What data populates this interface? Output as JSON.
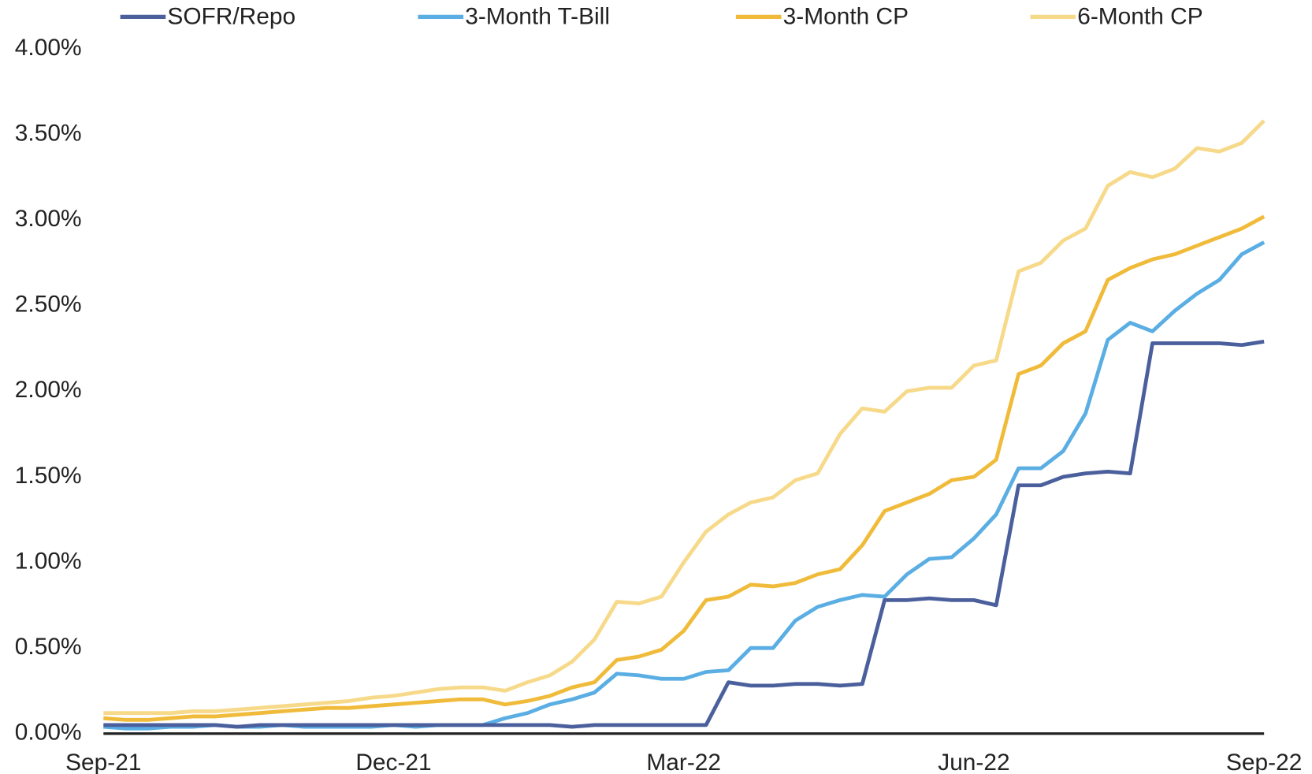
{
  "chart_data": {
    "type": "line",
    "categories": [
      "Sep-21",
      null,
      null,
      null,
      null,
      null,
      null,
      null,
      null,
      null,
      null,
      null,
      null,
      "Dec-21",
      null,
      null,
      null,
      null,
      null,
      null,
      null,
      null,
      null,
      null,
      null,
      null,
      "Mar-22",
      null,
      null,
      null,
      null,
      null,
      null,
      null,
      null,
      null,
      null,
      null,
      null,
      "Jun-22",
      null,
      null,
      null,
      null,
      null,
      null,
      null,
      null,
      null,
      null,
      null,
      null,
      "Sep-22"
    ],
    "series": [
      {
        "name": "SOFR/Repo",
        "color": "#4a5f9c",
        "values": [
          0.05,
          0.05,
          0.05,
          0.05,
          0.05,
          0.05,
          0.04,
          0.05,
          0.05,
          0.05,
          0.05,
          0.05,
          0.05,
          0.05,
          0.05,
          0.05,
          0.05,
          0.05,
          0.05,
          0.05,
          0.05,
          0.04,
          0.05,
          0.05,
          0.05,
          0.05,
          0.05,
          0.05,
          0.3,
          0.28,
          0.28,
          0.29,
          0.29,
          0.28,
          0.29,
          0.78,
          0.78,
          0.79,
          0.78,
          0.78,
          0.75,
          1.45,
          1.45,
          1.5,
          1.52,
          1.53,
          1.52,
          2.28,
          2.28,
          2.28,
          2.28,
          2.27,
          2.29
        ]
      },
      {
        "name": "3-Month T-Bill",
        "color": "#5aaee3",
        "values": [
          0.04,
          0.03,
          0.03,
          0.04,
          0.04,
          0.05,
          0.04,
          0.04,
          0.05,
          0.04,
          0.04,
          0.04,
          0.04,
          0.05,
          0.04,
          0.05,
          0.05,
          0.05,
          0.09,
          0.12,
          0.17,
          0.2,
          0.24,
          0.35,
          0.34,
          0.32,
          0.32,
          0.36,
          0.37,
          0.5,
          0.5,
          0.66,
          0.74,
          0.78,
          0.81,
          0.8,
          0.93,
          1.02,
          1.03,
          1.14,
          1.28,
          1.55,
          1.55,
          1.65,
          1.87,
          2.3,
          2.4,
          2.35,
          2.47,
          2.57,
          2.65,
          2.8,
          2.87
        ]
      },
      {
        "name": "3-Month CP",
        "color": "#f0bb3a",
        "values": [
          0.09,
          0.08,
          0.08,
          0.09,
          0.1,
          0.1,
          0.11,
          0.12,
          0.13,
          0.14,
          0.15,
          0.15,
          0.16,
          0.17,
          0.18,
          0.19,
          0.2,
          0.2,
          0.17,
          0.19,
          0.22,
          0.27,
          0.3,
          0.43,
          0.45,
          0.49,
          0.6,
          0.78,
          0.8,
          0.87,
          0.86,
          0.88,
          0.93,
          0.96,
          1.1,
          1.3,
          1.35,
          1.4,
          1.48,
          1.5,
          1.6,
          2.1,
          2.15,
          2.28,
          2.35,
          2.65,
          2.72,
          2.77,
          2.8,
          2.85,
          2.9,
          2.95,
          3.02
        ]
      },
      {
        "name": "6-Month CP",
        "color": "#f7d98a",
        "values": [
          0.12,
          0.12,
          0.12,
          0.12,
          0.13,
          0.13,
          0.14,
          0.15,
          0.16,
          0.17,
          0.18,
          0.19,
          0.21,
          0.22,
          0.24,
          0.26,
          0.27,
          0.27,
          0.25,
          0.3,
          0.34,
          0.42,
          0.55,
          0.77,
          0.76,
          0.8,
          1.0,
          1.18,
          1.28,
          1.35,
          1.38,
          1.48,
          1.52,
          1.75,
          1.9,
          1.88,
          2.0,
          2.02,
          2.02,
          2.15,
          2.18,
          2.7,
          2.75,
          2.88,
          2.95,
          3.2,
          3.28,
          3.25,
          3.3,
          3.42,
          3.4,
          3.45,
          3.58
        ]
      }
    ],
    "ylim": [
      0,
      4
    ],
    "yticks": [
      {
        "value": 0,
        "label": "0.00%"
      },
      {
        "value": 0.5,
        "label": "0.50%"
      },
      {
        "value": 1,
        "label": "1.00%"
      },
      {
        "value": 1.5,
        "label": "1.50%"
      },
      {
        "value": 2,
        "label": "2.00%"
      },
      {
        "value": 2.5,
        "label": "2.50%"
      },
      {
        "value": 3,
        "label": "3.00%"
      },
      {
        "value": 3.5,
        "label": "3.50%"
      },
      {
        "value": 4,
        "label": "4.00%"
      }
    ],
    "grid": false,
    "legend": "top"
  }
}
